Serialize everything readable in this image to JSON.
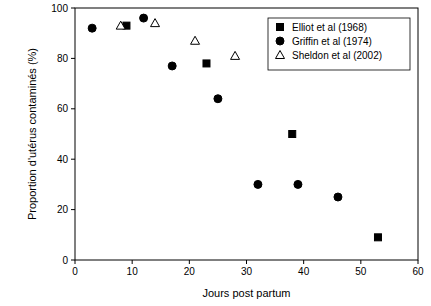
{
  "chart_data": {
    "type": "scatter",
    "x_label": "Jours post partum",
    "y_label": "Proportion d'utérus contaminés (%)",
    "xlim": [
      0,
      60
    ],
    "xticks": [
      0,
      10,
      20,
      30,
      40,
      50,
      60
    ],
    "ylim": [
      0,
      100
    ],
    "yticks": [
      0,
      20,
      40,
      60,
      80,
      100
    ],
    "grid": false,
    "legend": "top-right",
    "series": [
      {
        "name": "Elliot et al (1968)",
        "color": "#000000",
        "marker": "square",
        "x": [
          9,
          23,
          38,
          53
        ],
        "values": [
          93,
          78,
          50,
          9
        ]
      },
      {
        "name": "Griffin et al (1974)",
        "color": "#000000",
        "marker": "circle",
        "x": [
          3,
          12,
          17,
          25,
          32,
          39,
          46
        ],
        "values": [
          92,
          96,
          77,
          64,
          30,
          30,
          25
        ]
      },
      {
        "name": "Sheldon et al (2002)",
        "color": "#000000",
        "marker": "triangle",
        "x": [
          8,
          14,
          21,
          28
        ],
        "values": [
          93,
          94,
          87,
          81
        ]
      }
    ]
  }
}
